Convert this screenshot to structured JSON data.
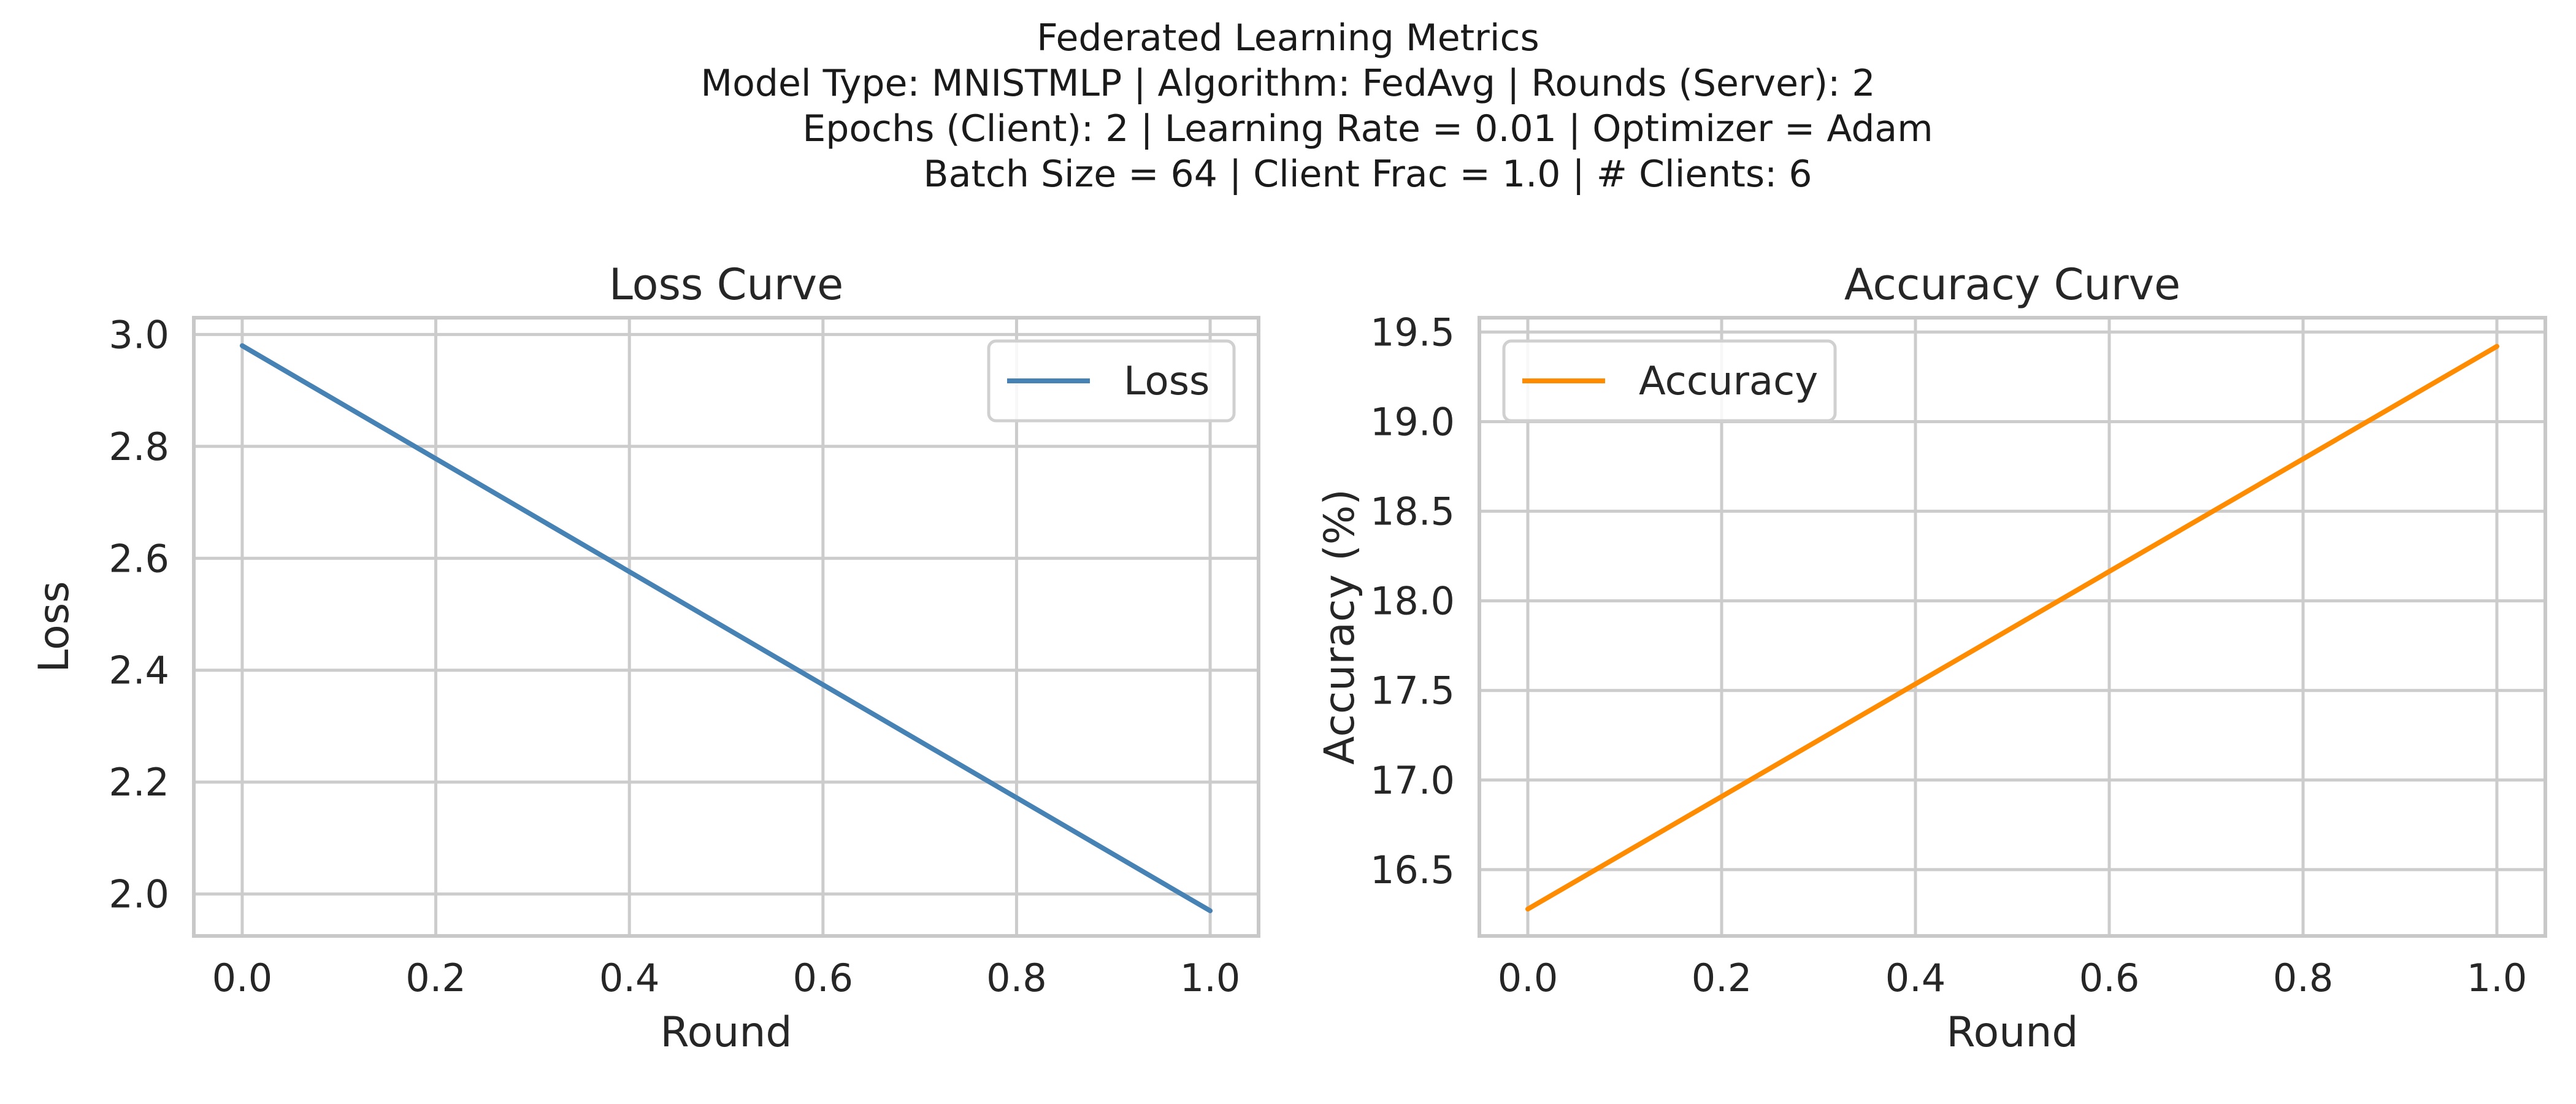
{
  "figure": {
    "title_lines": [
      "Federated Learning Metrics",
      "Model Type: MNISTMLP | Algorithm: FedAvg | Rounds (Server): 2",
      "Epochs (Client): 2 | Learning Rate = 0.01 | Optimizer = Adam",
      "Batch Size = 64 | Client Frac = 1.0 | # Clients: 6"
    ]
  },
  "chart_data": [
    {
      "type": "line",
      "title": "Loss Curve",
      "xlabel": "Round",
      "ylabel": "Loss",
      "xlim": [
        -0.05,
        1.05
      ],
      "ylim": [
        1.925,
        3.03
      ],
      "xticks": [
        0.0,
        0.2,
        0.4,
        0.6,
        0.8,
        1.0
      ],
      "yticks": [
        2.0,
        2.2,
        2.4,
        2.6,
        2.8,
        3.0
      ],
      "grid": true,
      "legend_position": "upper right",
      "series": [
        {
          "name": "Loss",
          "color": "#4682b4",
          "x": [
            0,
            1
          ],
          "y": [
            2.98,
            1.97
          ]
        }
      ]
    },
    {
      "type": "line",
      "title": "Accuracy Curve",
      "xlabel": "Round",
      "ylabel": "Accuracy (%)",
      "xlim": [
        -0.05,
        1.05
      ],
      "ylim": [
        16.13,
        19.58
      ],
      "xticks": [
        0.0,
        0.2,
        0.4,
        0.6,
        0.8,
        1.0
      ],
      "yticks": [
        16.5,
        17.0,
        17.5,
        18.0,
        18.5,
        19.0,
        19.5
      ],
      "grid": true,
      "legend_position": "upper left",
      "series": [
        {
          "name": "Accuracy",
          "color": "#ff8c00",
          "x": [
            0,
            1
          ],
          "y": [
            16.28,
            19.42
          ]
        }
      ]
    }
  ]
}
